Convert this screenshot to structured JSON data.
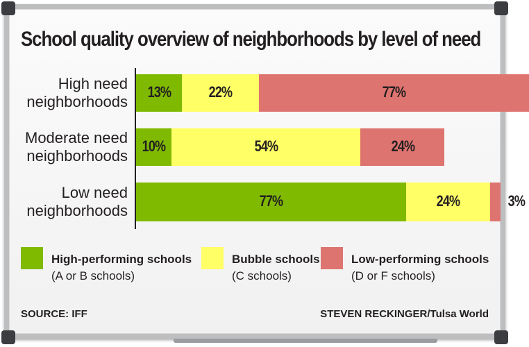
{
  "chart_data": {
    "type": "bar",
    "orientation": "horizontal",
    "stacked": true,
    "title": "School quality overview of neighborhoods by level of need",
    "categories": [
      "High need neighborhoods",
      "Moderate need neighborhoods",
      "Low need neighborhoods"
    ],
    "category_lines": [
      [
        "High need",
        "neighborhoods"
      ],
      [
        "Moderate need",
        "neighborhoods"
      ],
      [
        "Low need",
        "neighborhoods"
      ]
    ],
    "series": [
      {
        "name": "High-performing schools",
        "note": "(A or B schools)",
        "color": "#7fba00",
        "values": [
          13,
          10,
          77
        ],
        "labels": [
          "13%",
          "10%",
          "77%"
        ]
      },
      {
        "name": "Bubble schools",
        "note": "(C schools)",
        "color": "#ffff66",
        "values": [
          22,
          54,
          24
        ],
        "labels": [
          "22%",
          "54%",
          "24%"
        ]
      },
      {
        "name": "Low-performing schools",
        "note": "(D or F schools)",
        "color": "#de7470",
        "values": [
          77,
          24,
          3
        ],
        "labels": [
          "77%",
          "24%",
          "3%"
        ]
      }
    ],
    "xlabel": "",
    "ylabel": ""
  },
  "footer": {
    "source": "SOURCE: IFF",
    "credit": "STEVEN RECKINGER/Tulsa World"
  }
}
